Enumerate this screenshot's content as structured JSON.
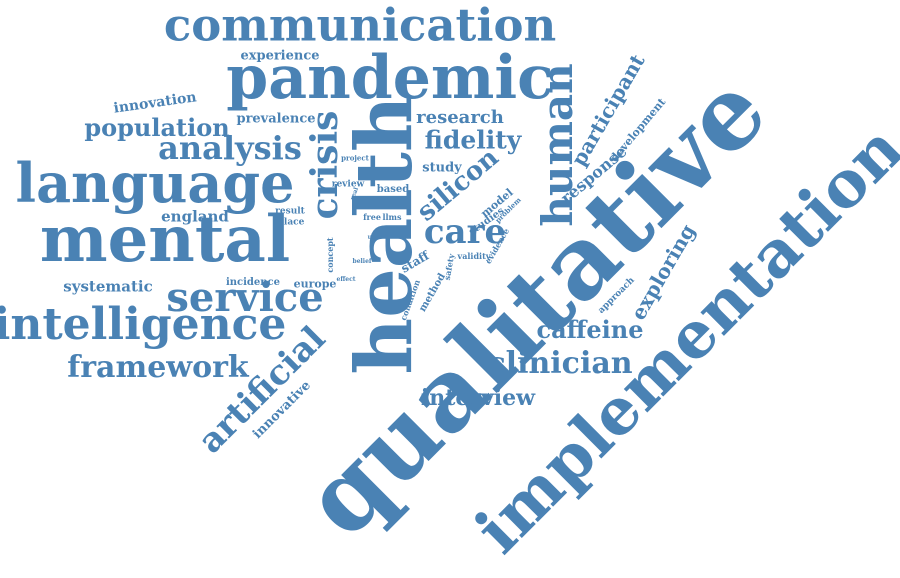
{
  "accent_color": "#4a82b4",
  "background_color": "#ffffff",
  "words": [
    {
      "id": "qualitative",
      "text": "qualitative"
    },
    {
      "id": "implementation",
      "text": "implementation"
    },
    {
      "id": "health",
      "text": "health"
    },
    {
      "id": "mental",
      "text": "mental"
    },
    {
      "id": "pandemic",
      "text": "pandemic"
    },
    {
      "id": "communication",
      "text": "communication"
    },
    {
      "id": "language",
      "text": "language"
    },
    {
      "id": "intelligence",
      "text": "intelligence"
    },
    {
      "id": "service",
      "text": "service"
    },
    {
      "id": "human",
      "text": "human"
    },
    {
      "id": "crisis",
      "text": "crisis"
    },
    {
      "id": "artificial",
      "text": "artificial"
    },
    {
      "id": "analysis",
      "text": "analysis"
    },
    {
      "id": "framework",
      "text": "framework"
    },
    {
      "id": "clinician",
      "text": "clinician"
    },
    {
      "id": "care",
      "text": "care"
    },
    {
      "id": "population",
      "text": "population"
    },
    {
      "id": "fidelity",
      "text": "fidelity"
    },
    {
      "id": "caffeine",
      "text": "caffeine"
    },
    {
      "id": "silicon",
      "text": "silicon"
    },
    {
      "id": "interview",
      "text": "interview"
    },
    {
      "id": "participant",
      "text": "participant"
    },
    {
      "id": "exploring",
      "text": "exploring"
    },
    {
      "id": "research",
      "text": "research"
    },
    {
      "id": "innovation",
      "text": "innovation"
    },
    {
      "id": "experience",
      "text": "experience"
    },
    {
      "id": "response",
      "text": "response"
    },
    {
      "id": "systematic",
      "text": "systematic"
    },
    {
      "id": "innovative",
      "text": "innovative"
    },
    {
      "id": "england",
      "text": "england"
    },
    {
      "id": "prevalence",
      "text": "prevalence"
    },
    {
      "id": "development",
      "text": "development"
    },
    {
      "id": "study",
      "text": "study"
    },
    {
      "id": "incidence",
      "text": "incidence"
    },
    {
      "id": "europe",
      "text": "europe"
    },
    {
      "id": "model",
      "text": "model"
    },
    {
      "id": "staff",
      "text": "staff"
    },
    {
      "id": "studies",
      "text": "studies"
    },
    {
      "id": "method",
      "text": "method"
    },
    {
      "id": "based",
      "text": "based"
    },
    {
      "id": "review",
      "text": "review"
    },
    {
      "id": "result",
      "text": "result"
    },
    {
      "id": "place",
      "text": "place"
    },
    {
      "id": "approach",
      "text": "approach"
    },
    {
      "id": "project",
      "text": "project"
    },
    {
      "id": "concept",
      "text": "concept"
    },
    {
      "id": "free",
      "text": "free"
    },
    {
      "id": "llms",
      "text": "llms"
    },
    {
      "id": "condition",
      "text": "condition"
    },
    {
      "id": "safety",
      "text": "safety"
    },
    {
      "id": "evidence",
      "text": "evidence"
    },
    {
      "id": "validity",
      "text": "validity"
    },
    {
      "id": "problem",
      "text": "problem"
    },
    {
      "id": "belief",
      "text": "belief"
    },
    {
      "id": "effect",
      "text": "effect"
    },
    {
      "id": "real",
      "text": "real"
    },
    {
      "id": "user",
      "text": "user"
    }
  ]
}
